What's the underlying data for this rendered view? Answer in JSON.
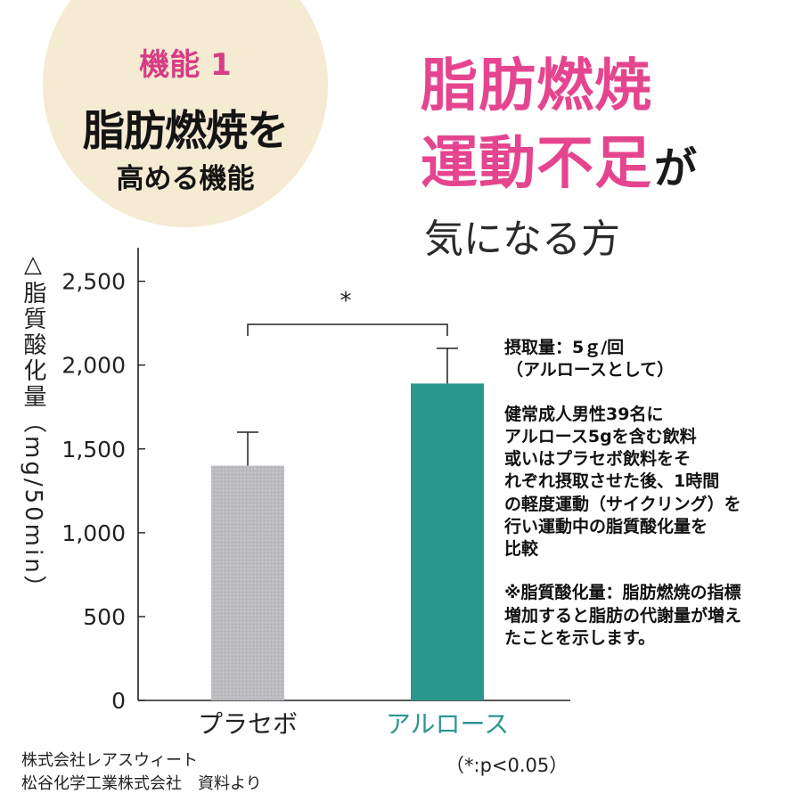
{
  "badge": {
    "kinou": "機能 1",
    "title": "脂肪燃焼を",
    "subtitle": "高める機能"
  },
  "headline": {
    "line1": "脂肪燃焼",
    "line2_main": "運動不足",
    "line2_suffix": "が",
    "line3": "気になる方"
  },
  "colors": {
    "accent_pink": "#e5458f",
    "badge_bg": "#f5ead2",
    "placebo_bar": "#bdbcc0",
    "allulose_bar": "#2a978d"
  },
  "chart_data": {
    "type": "bar",
    "categories": [
      "プラセボ",
      "アルロース"
    ],
    "values": [
      1400,
      1890
    ],
    "errors_upper": [
      1600,
      2100
    ],
    "ylim": [
      0,
      2700
    ],
    "yticks": [
      0,
      500,
      1000,
      1500,
      2000,
      2500
    ],
    "ytick_labels": [
      "0",
      "500",
      "1,000",
      "1,500",
      "2,000",
      "2,500"
    ],
    "ylabel": "△脂質酸化量（mg/50min）",
    "significance_label": "*",
    "grid": false
  },
  "notes": {
    "dose_line1": "摂取量：5ｇ/回",
    "dose_line2": "（アルロースとして）",
    "method_lines": [
      "健常成人男性39名に",
      "アルロース5gを含む飲料",
      "或いはプラセボ飲料をそ",
      "れぞれ摂取させた後、1時間",
      "の軽度運動（サイクリング）を",
      "行い運動中の脂質酸化量を",
      "比較"
    ],
    "footnote_lines": [
      "※脂質酸化量：脂肪燃焼の指標",
      "増加すると脂肪の代謝量が増え",
      "たことを示します。"
    ]
  },
  "source": {
    "line1": "株式会社レアスウィート",
    "line2": "松谷化学工業株式会社　資料より"
  },
  "p_note": "（*:p<0.05）"
}
